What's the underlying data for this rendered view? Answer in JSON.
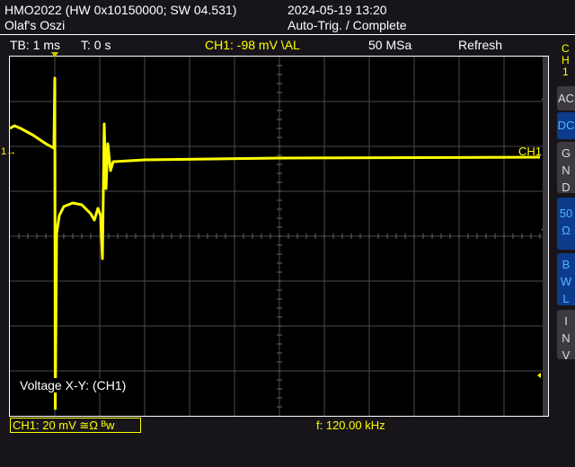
{
  "header": {
    "device": "HMO2022 (HW 0x10150000; SW 04.531)",
    "name": "Olaf's Oszi",
    "datetime": "2024-05-19 13:20",
    "status": "Auto-Trig. / Complete"
  },
  "infobar": {
    "timebase": "TB: 1 ms",
    "trigger_time": "T: 0 s",
    "trigger": "CH1: -98 mV \\AL",
    "sample_rate": "50 MSa",
    "mode": "Refresh"
  },
  "side": {
    "channel": [
      "C",
      "H",
      "1"
    ],
    "buttons": [
      {
        "label": "AC",
        "active": false
      },
      {
        "label": "DC",
        "active": true
      },
      {
        "label": "G\nN\nD",
        "active": false
      },
      {
        "label": "50\nΩ",
        "active": true
      },
      {
        "label": "B\nW\nL",
        "active": true
      },
      {
        "label": "I\nN\nV",
        "active": false
      }
    ]
  },
  "plot": {
    "channel_label": "CH1",
    "ground_marker": "1",
    "overlay": "Voltage X-Y: (CH1)",
    "trace_color": "#ffff00"
  },
  "footer": {
    "ch_scale": "CH1: 20 mV ≅Ω ᴮw",
    "frequency": "f: 120.00 kHz"
  },
  "chart_data": {
    "type": "line",
    "time_per_div_ms": 1,
    "volts_per_div_mV": 20,
    "xlim_ms": [
      -1,
      11
    ],
    "ylim_divs": [
      -4,
      4
    ],
    "grid": true,
    "series": [
      {
        "t_ms": [
          -1.0,
          -0.9,
          -0.76,
          -0.5,
          -0.2,
          -0.02,
          0,
          0.01,
          0.04,
          0.1,
          0.2,
          0.4,
          0.6,
          0.8,
          0.88,
          0.96,
          1.02,
          1.06,
          1.1,
          1.14,
          1.18,
          1.24,
          1.3,
          2,
          5,
          10.8
        ],
        "v_mV": [
          12,
          13.2,
          12,
          9.2,
          5.2,
          3.2,
          34.4,
          -112.8,
          -34.8,
          -26.8,
          -22.8,
          -21.2,
          -22,
          -26,
          -28.8,
          -23.6,
          -26.8,
          -46,
          14,
          -14.8,
          5.2,
          -6.8,
          -2.8,
          -2,
          -1.2,
          -0.8
        ]
      }
    ]
  }
}
